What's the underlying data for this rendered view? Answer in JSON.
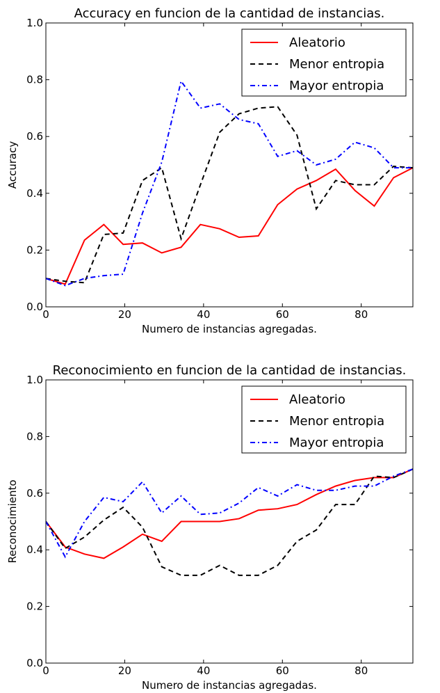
{
  "chart_data": [
    {
      "type": "line",
      "title": "Accuracy en funcion de la cantidad de instancias.",
      "xlabel": "Numero de instancias agregadas.",
      "ylabel": "Accuracy",
      "x": [
        0,
        4.9,
        9.8,
        14.7,
        19.6,
        24.5,
        29.4,
        34.3,
        39.2,
        44.1,
        49,
        53.9,
        58.8,
        63.7,
        68.6,
        73.5,
        78.4,
        83.3,
        88.2,
        93.1
      ],
      "series": [
        {
          "name": "Aleatorio",
          "color": "#ff0000",
          "linestyle": "solid",
          "values": [
            0.1,
            0.08,
            0.235,
            0.29,
            0.22,
            0.225,
            0.19,
            0.21,
            0.29,
            0.275,
            0.245,
            0.25,
            0.36,
            0.415,
            0.445,
            0.485,
            0.41,
            0.355,
            0.455,
            0.49
          ]
        },
        {
          "name": "Menor entropia",
          "color": "#000000",
          "linestyle": "dashed",
          "values": [
            0.1,
            0.09,
            0.085,
            0.255,
            0.26,
            0.445,
            0.49,
            0.24,
            0.43,
            0.615,
            0.68,
            0.7,
            0.705,
            0.605,
            0.345,
            0.445,
            0.43,
            0.43,
            0.495,
            0.49
          ]
        },
        {
          "name": "Mayor entropia",
          "color": "#0000ff",
          "linestyle": "dashdot",
          "values": [
            0.1,
            0.075,
            0.1,
            0.11,
            0.115,
            0.33,
            0.51,
            0.795,
            0.7,
            0.715,
            0.66,
            0.645,
            0.53,
            0.55,
            0.5,
            0.52,
            0.58,
            0.56,
            0.49,
            0.49
          ]
        }
      ],
      "xlim": [
        0,
        93.1
      ],
      "xticks": [
        0,
        20,
        40,
        60,
        80
      ],
      "ylim": [
        0,
        1
      ],
      "yticks": [
        {
          "value": 0,
          "label": "0.0"
        },
        0.2,
        0.4,
        0.6,
        0.8,
        {
          "value": 1,
          "label": "1.0"
        }
      ],
      "legend": "upper right"
    },
    {
      "type": "line",
      "title": "Reconocimiento en funcion de la cantidad de instancias.",
      "xlabel": "Numero de instancias agregadas.",
      "ylabel": "Reconocimiento",
      "x": [
        0,
        4.9,
        9.8,
        14.7,
        19.6,
        24.5,
        29.4,
        34.3,
        39.2,
        44.1,
        49,
        53.9,
        58.8,
        63.7,
        68.6,
        73.5,
        78.4,
        83.3,
        88.2,
        93.1
      ],
      "series": [
        {
          "name": "Aleatorio",
          "color": "#ff0000",
          "linestyle": "solid",
          "values": [
            0.5,
            0.41,
            0.385,
            0.37,
            0.41,
            0.455,
            0.43,
            0.5,
            0.5,
            0.5,
            0.51,
            0.54,
            0.545,
            0.56,
            0.595,
            0.625,
            0.645,
            0.655,
            0.655,
            0.685
          ]
        },
        {
          "name": "Menor entropia",
          "color": "#000000",
          "linestyle": "dashed",
          "values": [
            0.5,
            0.405,
            0.445,
            0.505,
            0.55,
            0.48,
            0.34,
            0.31,
            0.31,
            0.345,
            0.31,
            0.31,
            0.345,
            0.43,
            0.47,
            0.56,
            0.56,
            0.66,
            0.655,
            0.685
          ]
        },
        {
          "name": "Mayor entropia",
          "color": "#0000ff",
          "linestyle": "dashdot",
          "values": [
            0.5,
            0.375,
            0.5,
            0.585,
            0.57,
            0.64,
            0.53,
            0.59,
            0.525,
            0.53,
            0.565,
            0.62,
            0.59,
            0.63,
            0.61,
            0.61,
            0.625,
            0.625,
            0.66,
            0.685
          ]
        }
      ],
      "xlim": [
        0,
        93.1
      ],
      "xticks": [
        0,
        20,
        40,
        60,
        80
      ],
      "ylim": [
        0,
        1
      ],
      "yticks": [
        {
          "value": 0,
          "label": "0.0"
        },
        0.2,
        0.4,
        0.6,
        0.8,
        {
          "value": 1,
          "label": "1.0"
        }
      ],
      "legend": "upper right"
    }
  ]
}
